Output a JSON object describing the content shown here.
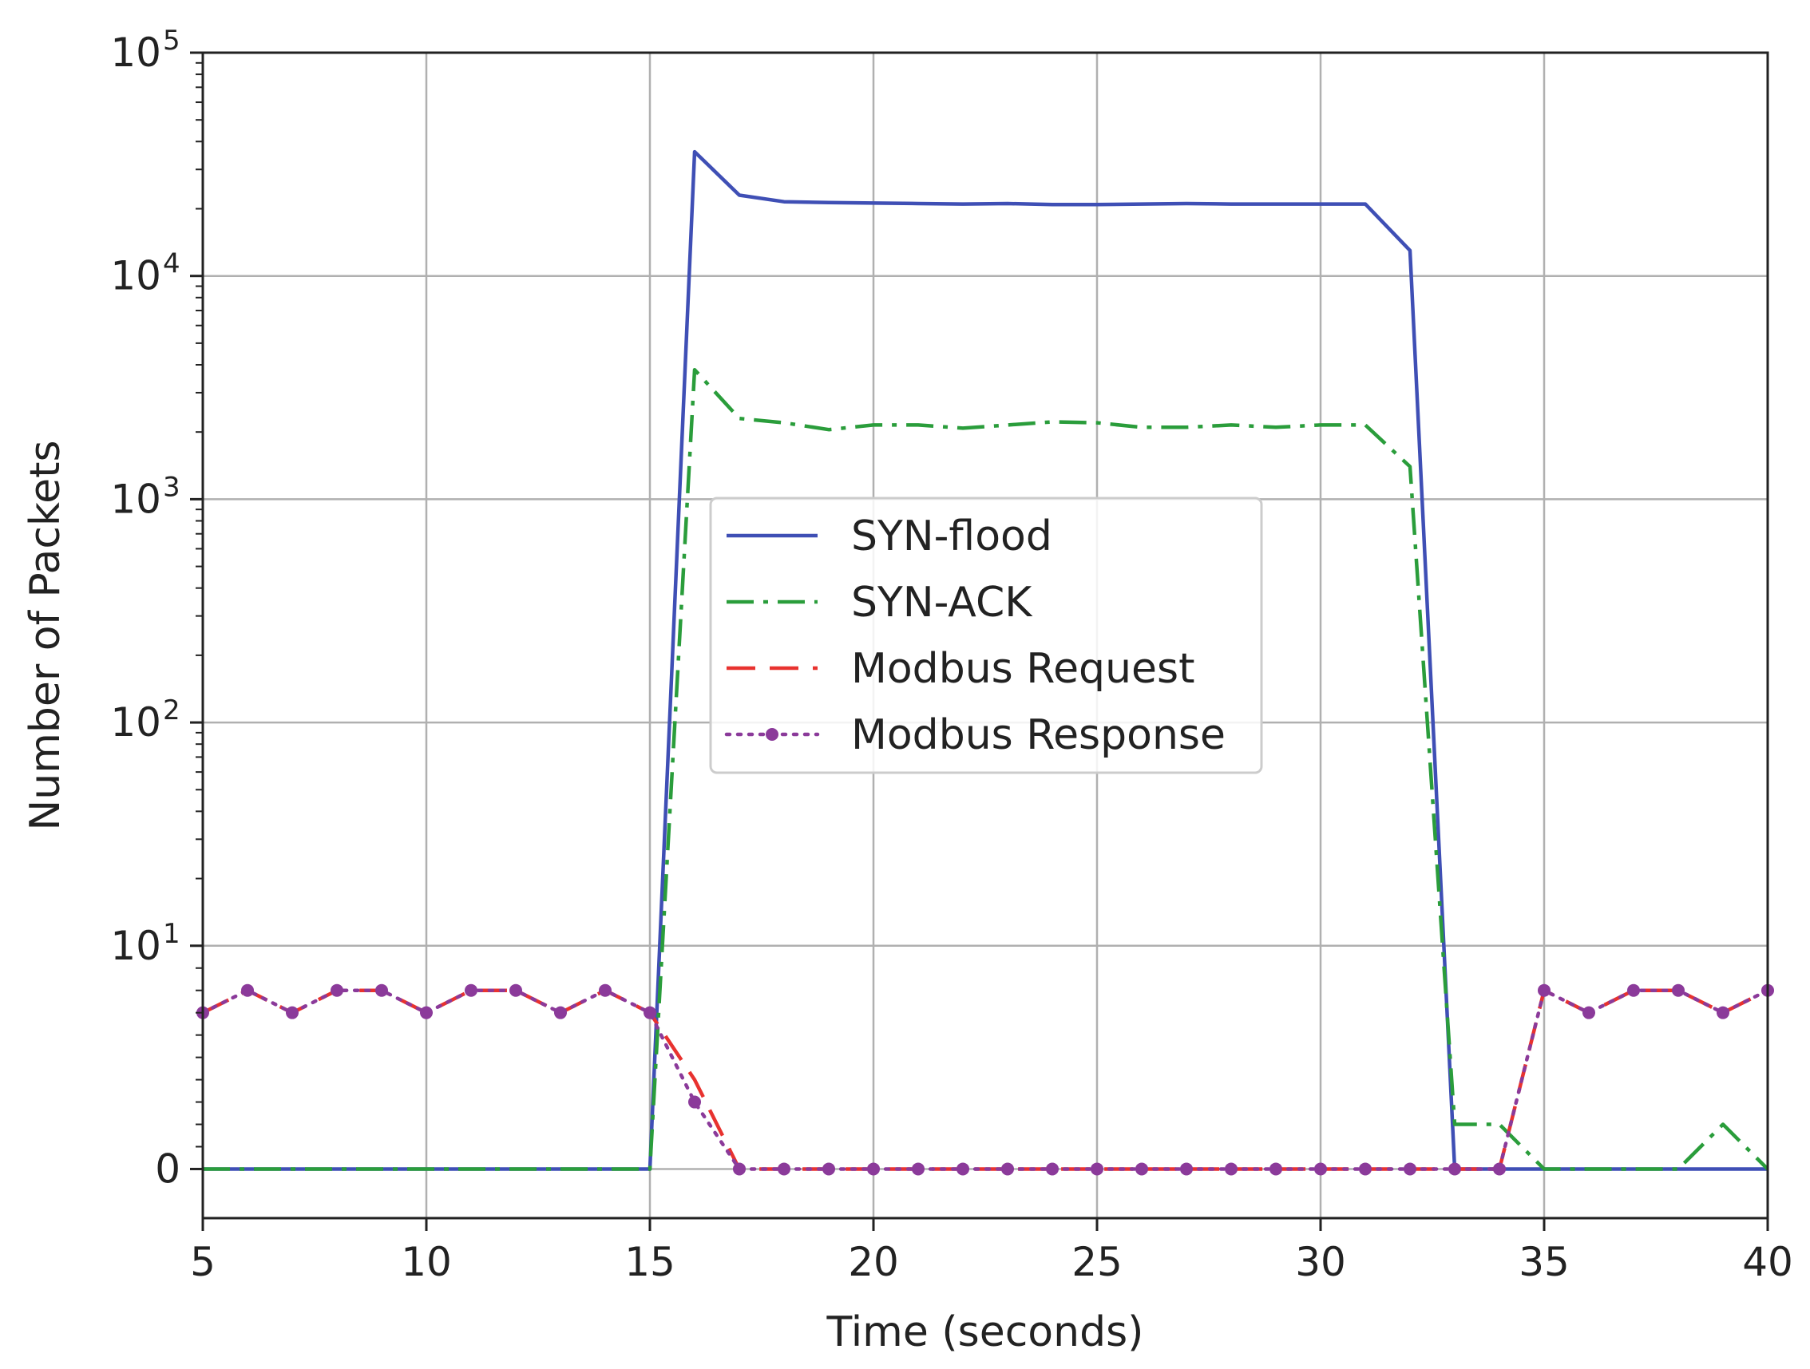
{
  "chart_data": {
    "type": "line",
    "xlabel": "Time (seconds)",
    "ylabel": "Number of Packets",
    "xlim": [
      5,
      40
    ],
    "ylim_display": [
      -0.22,
      5.0
    ],
    "yscale": "symlog (linear between 0 and 10^1, logarithmic above)",
    "grid": true,
    "legend_position": "center",
    "x_ticks": [
      5,
      10,
      15,
      20,
      25,
      30,
      35,
      40
    ],
    "y_ticks": [
      {
        "level": 0,
        "label": "0",
        "exp": ""
      },
      {
        "level": 1,
        "label": "10",
        "exp": "1"
      },
      {
        "level": 2,
        "label": "10",
        "exp": "2"
      },
      {
        "level": 3,
        "label": "10",
        "exp": "3"
      },
      {
        "level": 4,
        "label": "10",
        "exp": "4"
      },
      {
        "level": 5,
        "label": "10",
        "exp": "5"
      }
    ],
    "x": [
      5,
      6,
      7,
      8,
      9,
      10,
      11,
      12,
      13,
      14,
      15,
      16,
      17,
      18,
      19,
      20,
      21,
      22,
      23,
      24,
      25,
      26,
      27,
      28,
      29,
      30,
      31,
      32,
      33,
      34,
      35,
      36,
      37,
      38,
      39,
      40
    ],
    "series": [
      {
        "name": "SYN-flood",
        "color": "#3f4fb5",
        "dash": "",
        "marker": false,
        "values": [
          0,
          0,
          0,
          0,
          0,
          0,
          0,
          0,
          0,
          0,
          0,
          36000,
          23000,
          21500,
          21300,
          21200,
          21100,
          21000,
          21100,
          20900,
          20900,
          21000,
          21100,
          21000,
          21000,
          21000,
          21000,
          13000,
          0,
          0,
          0,
          0,
          0,
          0,
          0,
          0
        ]
      },
      {
        "name": "SYN-ACK",
        "color": "#2a9d3b",
        "dash": "34 12 6 12",
        "marker": false,
        "values": [
          0,
          0,
          0,
          0,
          0,
          0,
          0,
          0,
          0,
          0,
          0,
          3800,
          2300,
          2200,
          2050,
          2150,
          2150,
          2080,
          2150,
          2220,
          2200,
          2100,
          2100,
          2150,
          2100,
          2150,
          2150,
          1400,
          2,
          2,
          0,
          0,
          0,
          0,
          2,
          0
        ]
      },
      {
        "name": "Modbus Request",
        "color": "#e8322f",
        "dash": "36 18",
        "marker": false,
        "values": [
          7,
          8,
          7,
          8,
          8,
          7,
          8,
          8,
          7,
          8,
          7,
          4,
          0,
          0,
          0,
          0,
          0,
          0,
          0,
          0,
          0,
          0,
          0,
          0,
          0,
          0,
          0,
          0,
          0,
          0,
          8,
          7,
          8,
          8,
          7,
          8
        ]
      },
      {
        "name": "Modbus Response",
        "color": "#8b3a9a",
        "dash": "4 10",
        "marker": true,
        "values": [
          7,
          8,
          7,
          8,
          8,
          7,
          8,
          8,
          7,
          8,
          7,
          3,
          0,
          0,
          0,
          0,
          0,
          0,
          0,
          0,
          0,
          0,
          0,
          0,
          0,
          0,
          0,
          0,
          0,
          0,
          8,
          7,
          8,
          8,
          7,
          8
        ]
      }
    ]
  }
}
